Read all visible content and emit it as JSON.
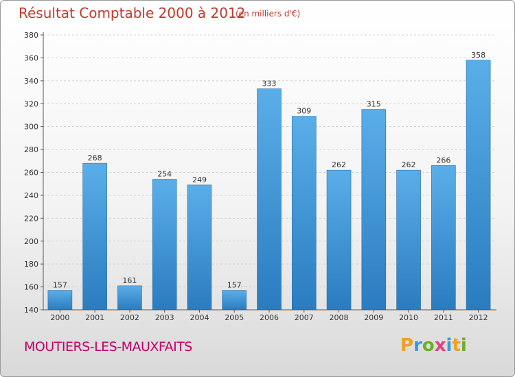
{
  "header": {
    "title": "Résultat Comptable 2000 à 2012",
    "subtitle": "(en milliers d'€)"
  },
  "footer": {
    "place": "MOUTIERS-LES-MAUXFAITS",
    "logo_text": "Proxiti"
  },
  "colors": {
    "title": "#c0392b",
    "place": "#c0006a",
    "bar_top": "#5aaee8",
    "bar_bottom": "#2a7cc0"
  },
  "chart_data": {
    "type": "bar",
    "title": "Résultat Comptable 2000 à 2012",
    "subtitle": "(en milliers d'€)",
    "categories": [
      "2000",
      "2001",
      "2002",
      "2003",
      "2004",
      "2005",
      "2006",
      "2007",
      "2008",
      "2009",
      "2010",
      "2011",
      "2012"
    ],
    "values": [
      157,
      268,
      161,
      254,
      249,
      157,
      333,
      309,
      262,
      315,
      262,
      266,
      358
    ],
    "ylim": [
      140,
      380
    ],
    "yticks": [
      140,
      160,
      180,
      200,
      220,
      240,
      260,
      280,
      300,
      320,
      340,
      360,
      380
    ],
    "grid": true,
    "data_labels": true
  }
}
